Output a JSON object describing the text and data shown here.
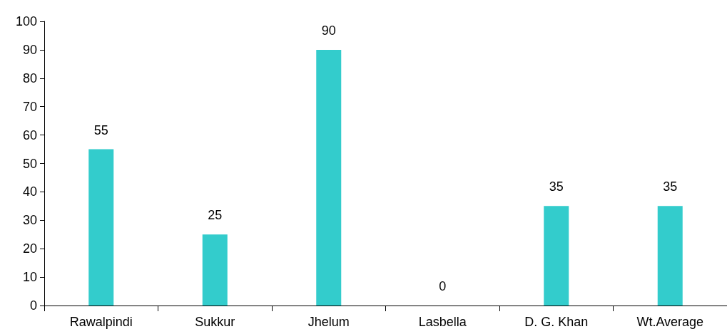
{
  "chart_data": {
    "type": "bar",
    "categories": [
      "Rawalpindi",
      "Sukkur",
      "Jhelum",
      "Lasbella",
      "D. G. Khan",
      "Wt.Average"
    ],
    "values": [
      55,
      25,
      90,
      0,
      35,
      35
    ],
    "color": "#33cccc",
    "ylim": [
      0,
      100
    ],
    "yticks": [
      0,
      10,
      20,
      30,
      40,
      50,
      60,
      70,
      80,
      90,
      100
    ],
    "grid": false,
    "data_labels": true
  }
}
